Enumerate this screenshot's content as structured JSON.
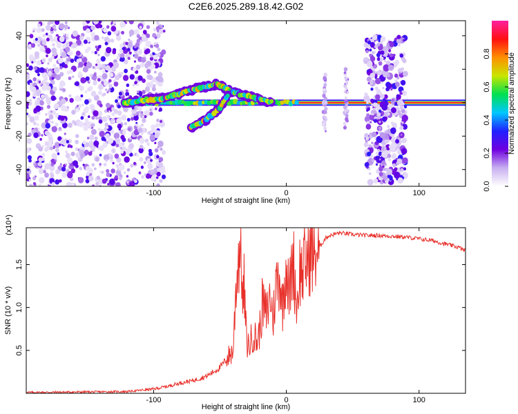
{
  "figure": {
    "title": "C2E6.2025.289.18.42.G02"
  },
  "chart_data": [
    {
      "type": "heatmap",
      "xlabel": "Height of straight line (km)",
      "ylabel": "Frequency (Hz)",
      "xlim": [
        -196,
        135
      ],
      "ylim": [
        -50,
        49
      ],
      "x_ticks": [
        -100,
        0,
        100
      ],
      "x_tick_labels": [
        "-100",
        "0",
        "100"
      ],
      "y_ticks": [
        -40,
        -20,
        0,
        20,
        40
      ],
      "y_tick_labels": [
        "-40",
        "-20",
        "0",
        "20",
        "40"
      ],
      "grid": false,
      "colorbar": {
        "label": "Normalized spectral amplitude",
        "range": [
          0,
          1
        ],
        "ticks": [
          0.0,
          0.2,
          0.4,
          0.6,
          0.8
        ],
        "tick_labels": [
          "0.0",
          "0.2",
          "0.4",
          "0.6",
          "0.8"
        ],
        "colormap": [
          "#ffffff",
          "#c8b0f0",
          "#6f00e0",
          "#2020ff",
          "#00c8ff",
          "#00e050",
          "#c8e600",
          "#ff9000",
          "#ff1010",
          "#ff20a0"
        ]
      },
      "features": [
        {
          "name": "Scatter field",
          "x_range": [
            -196,
            -100
          ],
          "freq_range": [
            -50,
            49
          ]
        },
        {
          "name": "Carrier line",
          "x_range": [
            -122,
            135
          ],
          "freq": 0
        },
        {
          "name": "Upper arm",
          "points": [
            [
              -122,
              0
            ],
            [
              -90,
              3
            ],
            [
              -70,
              8
            ],
            [
              -52,
              11
            ],
            [
              -40,
              6
            ],
            [
              -35,
              5
            ],
            [
              -20,
              2
            ],
            [
              -10,
              0
            ]
          ]
        },
        {
          "name": "Lower arm",
          "points": [
            [
              -72,
              -15
            ],
            [
              -60,
              -10
            ],
            [
              -50,
              -3
            ],
            [
              -43,
              6
            ]
          ]
        },
        {
          "name": "Band",
          "x_range": [
            28,
            30
          ],
          "freq_range": [
            -18,
            18
          ]
        },
        {
          "name": "Band",
          "x_range": [
            44,
            46
          ],
          "freq_range": [
            -15,
            20
          ]
        },
        {
          "name": "Band",
          "x_range": [
            60,
            90
          ],
          "freq_range": [
            -48,
            40
          ]
        }
      ]
    },
    {
      "type": "line",
      "xlabel": "Height of straight line (km)",
      "ylabel": "SNR (10 * v/v)",
      "multiplier_label": "(x10⁴)",
      "xlim": [
        -196,
        135
      ],
      "ylim": [
        0,
        1.93
      ],
      "x_ticks": [
        -100,
        0,
        100
      ],
      "x_tick_labels": [
        "-100",
        "0",
        "100"
      ],
      "y_ticks": [
        0.5,
        1.0,
        1.5
      ],
      "y_tick_labels": [
        "0.5",
        "1.0",
        "1.5"
      ],
      "grid": false,
      "series": [
        {
          "color": "#e8302a",
          "x": [
            -196,
            -120,
            -100,
            -90,
            -80,
            -70,
            -60,
            -50,
            -45,
            -40,
            -38,
            -36,
            -34,
            -33,
            -32,
            -30,
            -28,
            -25,
            -22,
            -20,
            -18,
            -15,
            -12,
            -10,
            -8,
            -5,
            -3,
            0,
            2,
            5,
            8,
            10,
            12,
            15,
            18,
            20,
            25,
            30,
            35,
            40,
            50,
            60,
            70,
            80,
            90,
            100,
            110,
            120,
            130,
            135
          ],
          "values": [
            0.01,
            0.02,
            0.05,
            0.08,
            0.12,
            0.15,
            0.2,
            0.3,
            0.4,
            0.5,
            1.25,
            1.6,
            1.85,
            0.9,
            1.3,
            0.6,
            0.55,
            0.7,
            0.6,
            0.75,
            1.05,
            0.9,
            1.15,
            0.85,
            1.25,
            1.4,
            1.0,
            1.55,
            1.1,
            1.6,
            1.0,
            1.45,
            1.4,
            1.55,
            1.65,
            1.6,
            1.7,
            1.82,
            1.85,
            1.87,
            1.85,
            1.84,
            1.84,
            1.83,
            1.82,
            1.8,
            1.78,
            1.74,
            1.7,
            1.66
          ]
        }
      ]
    }
  ]
}
